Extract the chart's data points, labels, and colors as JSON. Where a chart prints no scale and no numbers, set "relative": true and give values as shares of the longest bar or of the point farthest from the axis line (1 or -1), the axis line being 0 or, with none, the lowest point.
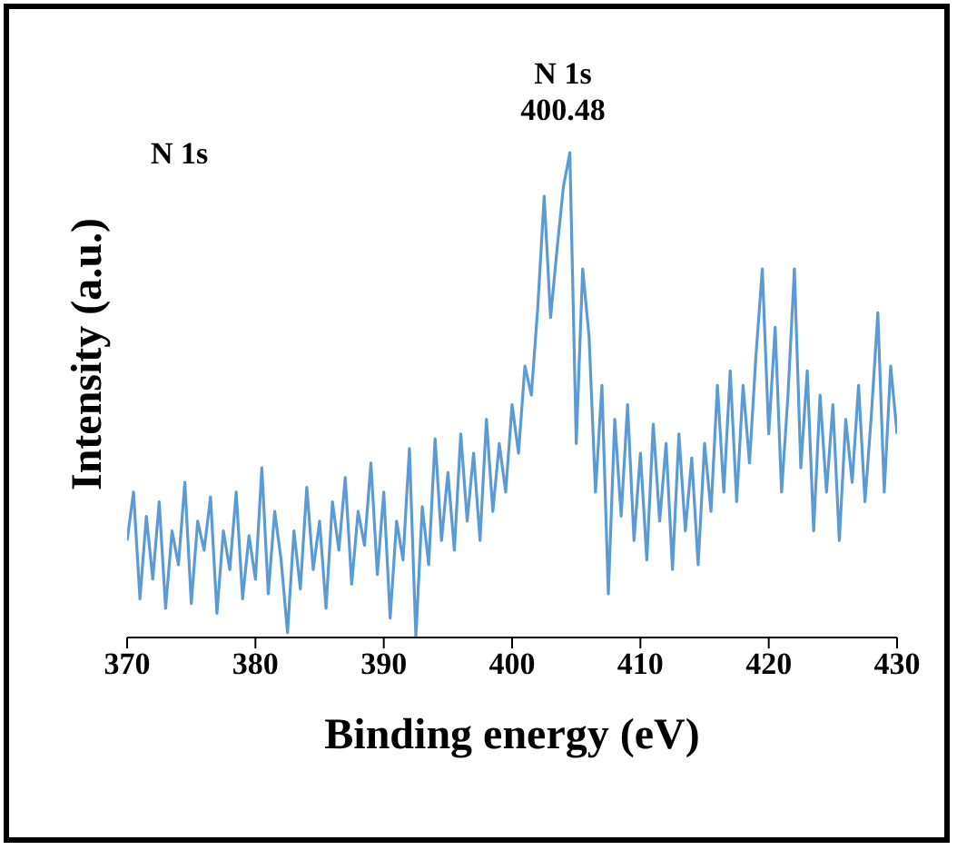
{
  "chart_data": {
    "type": "line",
    "relative": true,
    "xlabel": "Binding energy (eV)",
    "ylabel": "Intensity (a.u.)",
    "annotations": [
      "N 1s",
      "N 1s\n400.48"
    ],
    "xlim": [
      370,
      430
    ],
    "xticks": [
      370,
      380,
      390,
      400,
      410,
      420,
      430
    ],
    "x": [
      370,
      370.5,
      371,
      371.5,
      372,
      372.5,
      373,
      373.5,
      374,
      374.5,
      375,
      375.5,
      376,
      376.5,
      377,
      377.5,
      378,
      378.5,
      379,
      379.5,
      380,
      380.5,
      381,
      381.5,
      382,
      382.5,
      383,
      383.5,
      384,
      384.5,
      385,
      385.5,
      386,
      386.5,
      387,
      387.5,
      388,
      388.5,
      389,
      389.5,
      390,
      390.5,
      391,
      391.5,
      392,
      392.5,
      393,
      393.5,
      394,
      394.5,
      395,
      395.5,
      396,
      396.5,
      397,
      397.5,
      398,
      398.5,
      399,
      399.5,
      400,
      400.5,
      401,
      401.5,
      402,
      402.5,
      403,
      403.5,
      404,
      404.5,
      405,
      405.5,
      406,
      406.5,
      407,
      407.5,
      408,
      408.5,
      409,
      409.5,
      410,
      410.5,
      411,
      411.5,
      412,
      412.5,
      413,
      413.5,
      414,
      414.5,
      415,
      415.5,
      416,
      416.5,
      417,
      417.5,
      418,
      418.5,
      419,
      419.5,
      420,
      420.5,
      421,
      421.5,
      422,
      422.5,
      423,
      423.5,
      424,
      424.5,
      425,
      425.5,
      426,
      426.5,
      427,
      427.5,
      428,
      428.5,
      429,
      429.5,
      430
    ],
    "series": [
      {
        "color": "#5b9bd5",
        "values": [
          0.2,
          0.3,
          0.08,
          0.25,
          0.12,
          0.28,
          0.06,
          0.22,
          0.15,
          0.32,
          0.07,
          0.24,
          0.18,
          0.29,
          0.05,
          0.22,
          0.14,
          0.3,
          0.08,
          0.21,
          0.12,
          0.35,
          0.09,
          0.26,
          0.16,
          0.01,
          0.22,
          0.1,
          0.31,
          0.14,
          0.24,
          0.06,
          0.28,
          0.18,
          0.33,
          0.11,
          0.26,
          0.19,
          0.36,
          0.13,
          0.3,
          0.04,
          0.24,
          0.16,
          0.39,
          0.0,
          0.27,
          0.15,
          0.41,
          0.2,
          0.34,
          0.18,
          0.42,
          0.24,
          0.38,
          0.2,
          0.45,
          0.26,
          0.4,
          0.3,
          0.48,
          0.38,
          0.56,
          0.5,
          0.68,
          0.91,
          0.66,
          0.8,
          0.93,
          1.0,
          0.4,
          0.76,
          0.62,
          0.3,
          0.52,
          0.09,
          0.45,
          0.25,
          0.48,
          0.2,
          0.38,
          0.16,
          0.44,
          0.24,
          0.4,
          0.14,
          0.42,
          0.22,
          0.37,
          0.15,
          0.4,
          0.26,
          0.52,
          0.3,
          0.55,
          0.28,
          0.52,
          0.36,
          0.58,
          0.76,
          0.42,
          0.64,
          0.3,
          0.5,
          0.76,
          0.35,
          0.55,
          0.22,
          0.5,
          0.3,
          0.48,
          0.2,
          0.45,
          0.32,
          0.52,
          0.28,
          0.46,
          0.67,
          0.3,
          0.56,
          0.42
        ]
      }
    ]
  }
}
